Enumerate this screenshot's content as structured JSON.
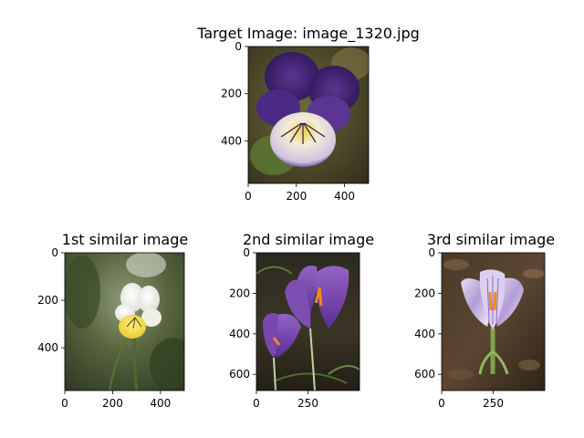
{
  "chart_data": [
    {
      "type": "image",
      "title": "Target Image: image_1320.jpg",
      "depicts": "viola-tricolor-flower",
      "width": 500,
      "height": 580,
      "xticks": [
        0,
        200,
        400
      ],
      "yticks": [
        0,
        200,
        400
      ],
      "xlim": [
        0,
        500
      ],
      "ylim": [
        580,
        0
      ]
    },
    {
      "type": "image",
      "title": "1st similar image",
      "depicts": "white-yellow-viola-flower",
      "width": 500,
      "height": 580,
      "xticks": [
        0,
        200,
        400
      ],
      "yticks": [
        0,
        200,
        400
      ],
      "xlim": [
        0,
        500
      ],
      "ylim": [
        580,
        0
      ]
    },
    {
      "type": "image",
      "title": "2nd similar image",
      "depicts": "purple-crocus-flowers",
      "width": 500,
      "height": 680,
      "xticks": [
        0,
        250
      ],
      "yticks": [
        0,
        200,
        400,
        600
      ],
      "xlim": [
        0,
        500
      ],
      "ylim": [
        680,
        0
      ]
    },
    {
      "type": "image",
      "title": "3rd similar image",
      "depicts": "lilac-striped-crocus-flower",
      "width": 500,
      "height": 680,
      "xticks": [
        0,
        250
      ],
      "yticks": [
        0,
        200,
        400,
        600
      ],
      "xlim": [
        0,
        500
      ],
      "ylim": [
        680,
        0
      ]
    }
  ]
}
